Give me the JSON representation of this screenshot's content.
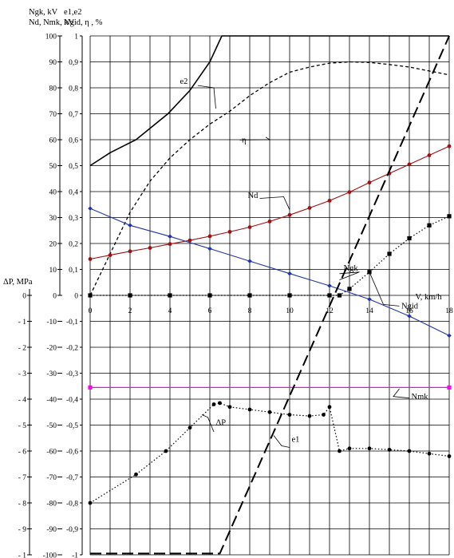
{
  "chart_data": {
    "type": "line",
    "x_axis": {
      "label": "V, km/h",
      "range": [
        0,
        18
      ],
      "ticks": [
        0,
        2,
        4,
        6,
        8,
        10,
        12,
        14,
        16,
        18
      ]
    },
    "left_axes": {
      "header_line1": "Ngk, kV",
      "header_line2": "Nd, Nmk, kV",
      "kV_ticks": [
        "100",
        "90",
        "80",
        "70",
        "60",
        "50",
        "40",
        "30",
        "20",
        "10",
        "0",
        "-10",
        "-20",
        "-30",
        "-40",
        "-50",
        "-60",
        "-70",
        "-80",
        "-90",
        "-100"
      ],
      "dp_label": "ΔP, MPa",
      "mpa_ticks": [
        "0",
        "- 1",
        "- 2",
        "- 3",
        "- 4",
        "- 5",
        "- 6",
        "- 7",
        "- 8",
        "- 9",
        "- 1"
      ],
      "ratio_header_line1": "e1,e2",
      "ratio_header_line2": "Ngid, η , %",
      "ratio_ticks": [
        "1",
        "0,9",
        "0,8",
        "0,7",
        "0,6",
        "0,5",
        "0,4",
        "0,3",
        "0,2",
        "0,1",
        "0",
        "-0,1",
        "-0,2",
        "-0,3",
        "-0,4",
        "-0,5",
        "-0,6",
        "-0,7",
        "-0,8",
        "-0,9",
        "-1"
      ]
    },
    "y_range_plot": [
      -100,
      100
    ],
    "series": [
      {
        "name": "e2",
        "color": "#000000",
        "style": "solid",
        "width": 1.6,
        "points": [
          [
            0,
            50
          ],
          [
            1,
            55
          ],
          [
            2.3,
            60
          ],
          [
            3.9,
            70
          ],
          [
            5,
            79
          ],
          [
            6,
            90
          ],
          [
            6.6,
            100
          ],
          [
            18,
            100
          ]
        ]
      },
      {
        "name": "η",
        "color": "#000000",
        "style": "dashed-short",
        "width": 1.3,
        "points": [
          [
            0,
            0
          ],
          [
            1,
            16
          ],
          [
            2,
            32
          ],
          [
            3,
            44
          ],
          [
            4,
            53
          ],
          [
            5,
            60
          ],
          [
            6,
            66
          ],
          [
            7,
            71
          ],
          [
            8,
            77
          ],
          [
            9,
            82
          ],
          [
            10,
            86
          ],
          [
            11,
            88
          ],
          [
            12,
            89.5
          ],
          [
            13,
            90
          ],
          [
            14,
            89.8
          ],
          [
            15,
            89
          ],
          [
            16,
            88
          ],
          [
            17,
            86.5
          ],
          [
            18,
            85
          ]
        ]
      },
      {
        "name": "Nd",
        "color": "#a01010",
        "style": "solid",
        "width": 1.1,
        "marker": "dot",
        "points": [
          [
            0,
            14
          ],
          [
            1,
            15.5
          ],
          [
            2,
            17
          ],
          [
            3,
            18.3
          ],
          [
            4,
            19.8
          ],
          [
            5,
            21.2
          ],
          [
            6,
            22.8
          ],
          [
            7,
            24.5
          ],
          [
            8,
            26.3
          ],
          [
            9,
            28.5
          ],
          [
            10,
            31
          ],
          [
            11,
            33.7
          ],
          [
            12,
            36.5
          ],
          [
            13,
            39.8
          ],
          [
            14,
            43.5
          ],
          [
            15,
            47
          ],
          [
            16,
            50.5
          ],
          [
            17,
            54
          ],
          [
            18,
            57.5
          ]
        ]
      },
      {
        "name": "Ngk",
        "color": "#2233aa",
        "style": "solid",
        "width": 1.1,
        "marker": "diamond",
        "points": [
          [
            0,
            33.5
          ],
          [
            2,
            27
          ],
          [
            4,
            22.7
          ],
          [
            6,
            18
          ],
          [
            8,
            13.2
          ],
          [
            10,
            8.4
          ],
          [
            12,
            3.7
          ],
          [
            14,
            -1.5
          ],
          [
            16,
            -8
          ],
          [
            18,
            -15.5
          ]
        ]
      },
      {
        "name": "Ngid",
        "color": "#000000",
        "style": "dotted",
        "width": 1.2,
        "marker": "square",
        "points": [
          [
            0,
            0
          ],
          [
            2,
            0
          ],
          [
            4,
            0
          ],
          [
            6,
            0
          ],
          [
            8,
            0
          ],
          [
            10,
            0
          ],
          [
            12,
            0
          ],
          [
            12.5,
            0
          ],
          [
            13,
            2.5
          ],
          [
            14,
            9
          ],
          [
            15,
            16
          ],
          [
            16,
            22
          ],
          [
            17,
            27
          ],
          [
            18,
            30.5
          ]
        ]
      },
      {
        "name": "Nmk",
        "color": "#ff00ff",
        "style": "solid",
        "width": 1.2,
        "marker": "square",
        "points": [
          [
            0,
            -35.5
          ],
          [
            18,
            -35.5
          ]
        ]
      },
      {
        "name": "ΔP",
        "color": "#000000",
        "style": "dotted",
        "width": 1.2,
        "marker": "dot",
        "points": [
          [
            0,
            -80
          ],
          [
            2.3,
            -69
          ],
          [
            3.8,
            -60
          ],
          [
            5,
            -51
          ],
          [
            6.2,
            -42
          ],
          [
            6.5,
            -41.5
          ],
          [
            7,
            -43
          ],
          [
            8,
            -44
          ],
          [
            9,
            -45
          ],
          [
            10,
            -46
          ],
          [
            11,
            -46.5
          ],
          [
            11.7,
            -46
          ],
          [
            12,
            -43
          ],
          [
            12.5,
            -60
          ],
          [
            13,
            -59
          ],
          [
            14,
            -59
          ],
          [
            15,
            -59.5
          ],
          [
            16,
            -60
          ],
          [
            17,
            -61
          ],
          [
            18,
            -62
          ]
        ]
      },
      {
        "name": "e1",
        "color": "#000000",
        "style": "dashed-long",
        "width": 2,
        "points": [
          [
            0,
            -99.5
          ],
          [
            6.5,
            -99.5
          ],
          [
            18,
            100
          ]
        ]
      }
    ],
    "annotations": [
      {
        "text": "e2",
        "anchor": [
          5.4,
          81.5
        ]
      },
      {
        "text": "η",
        "anchor": [
          7.5,
          60.5
        ]
      },
      {
        "text": "Nd",
        "anchor": [
          8.5,
          38
        ]
      },
      {
        "text": "Ngk",
        "anchor": [
          12.5,
          9
        ]
      },
      {
        "text": "Ngid",
        "anchor": [
          15.5,
          -3.5
        ]
      },
      {
        "text": "Nmk",
        "anchor": [
          16,
          -39
        ]
      },
      {
        "text": "ΔP",
        "anchor": [
          6.2,
          -52
        ]
      },
      {
        "text": "e1",
        "anchor": [
          10,
          -58
        ]
      }
    ],
    "grid": true
  }
}
